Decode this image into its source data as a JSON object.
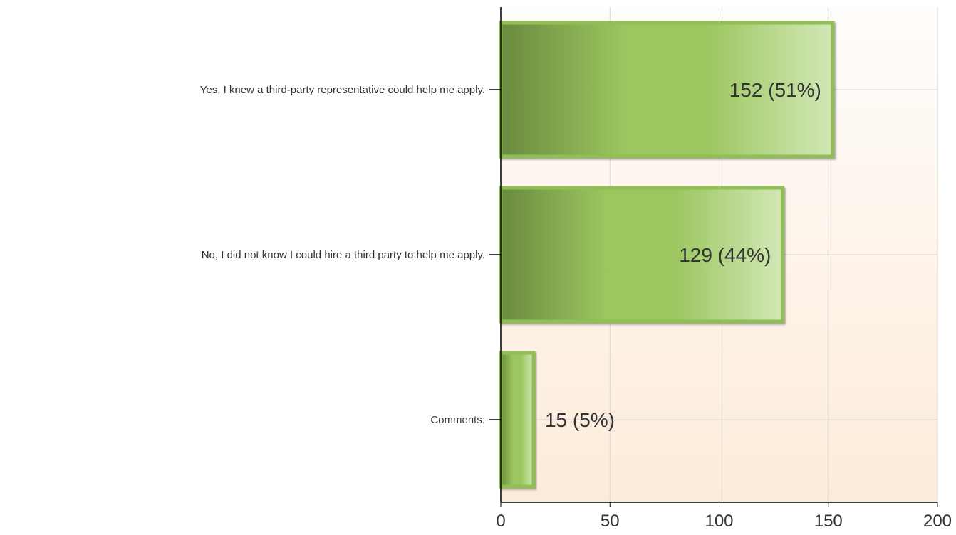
{
  "chart_data": {
    "type": "bar",
    "orientation": "horizontal",
    "categories": [
      "Yes, I knew a third-party representative could help me apply.",
      "No, I did not know I could hire a third party to help me apply.",
      "Comments:"
    ],
    "values": [
      152,
      129,
      15
    ],
    "data_labels": [
      "152 (51%)",
      "129 (44%)",
      "15 (5%)"
    ],
    "xlim": [
      0,
      200
    ],
    "xticks": [
      0,
      50,
      100,
      150,
      200
    ],
    "title": "",
    "xlabel": "",
    "ylabel": "",
    "grid": true,
    "legend": "none",
    "colors": {
      "bar_dark": "#6a8a3e",
      "bar_mid": "#9cc760",
      "bar_light": "#d2e7b6",
      "bar_border": "#8fbf55",
      "plot_bg_top": "#fffdfb",
      "plot_bg_bottom": "#fcebd9",
      "grid": "#d5d5d5",
      "axis": "#000000",
      "text": "#333333"
    }
  }
}
